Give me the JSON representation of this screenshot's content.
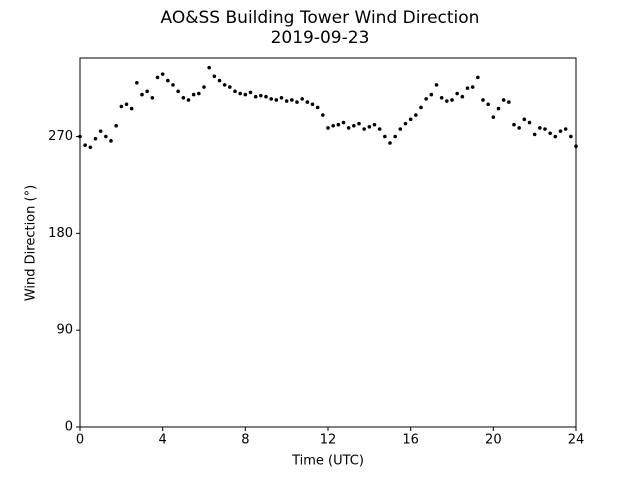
{
  "chart_data": {
    "type": "scatter",
    "title": "AO&SS Building Tower Wind Direction",
    "subtitle": "2019-09-23",
    "x_label": "Time (UTC)",
    "y_label": "Wind Direction (°)",
    "color": "#000000",
    "xlim": [
      0,
      24
    ],
    "xticks": [
      0,
      4,
      8,
      12,
      16,
      20,
      24
    ],
    "ylim": [
      0,
      343
    ],
    "yticks": [
      0,
      90,
      180,
      270
    ],
    "x": [
      0,
      0.25,
      0.5,
      0.75,
      1,
      1.25,
      1.5,
      1.75,
      2,
      2.25,
      2.5,
      2.75,
      3,
      3.25,
      3.5,
      3.75,
      4,
      4.25,
      4.5,
      4.75,
      5,
      5.25,
      5.5,
      5.75,
      6,
      6.25,
      6.5,
      6.75,
      7,
      7.25,
      7.5,
      7.75,
      8,
      8.25,
      8.5,
      8.75,
      9,
      9.25,
      9.5,
      9.75,
      10,
      10.25,
      10.5,
      10.75,
      11,
      11.25,
      11.5,
      11.75,
      12,
      12.25,
      12.5,
      12.75,
      13,
      13.25,
      13.5,
      13.75,
      14,
      14.25,
      14.5,
      14.75,
      15,
      15.25,
      15.5,
      15.75,
      16,
      16.25,
      16.5,
      16.75,
      17,
      17.25,
      17.5,
      17.75,
      18,
      18.25,
      18.5,
      18.75,
      19,
      19.25,
      19.5,
      19.75,
      20,
      20.25,
      20.5,
      20.75,
      21,
      21.25,
      21.5,
      21.75,
      22,
      22.25,
      22.5,
      22.75,
      23,
      23.25,
      23.5,
      23.75,
      24
    ],
    "values": [
      270,
      262,
      260,
      268,
      275,
      270,
      266,
      280,
      298,
      300,
      296,
      320,
      309,
      312,
      306,
      325,
      328,
      322,
      318,
      312,
      306,
      304,
      309,
      310,
      316,
      334,
      326,
      322,
      318,
      316,
      312,
      310,
      309,
      311,
      307,
      308,
      307,
      305,
      304,
      306,
      303,
      304,
      302,
      305,
      302,
      300,
      297,
      290,
      278,
      280,
      281,
      283,
      278,
      280,
      282,
      277,
      279,
      281,
      277,
      270,
      264,
      270,
      277,
      282,
      286,
      290,
      297,
      305,
      309,
      318,
      306,
      303,
      304,
      310,
      307,
      315,
      316,
      325,
      304,
      300,
      288,
      296,
      304,
      302,
      281,
      278,
      286,
      283,
      272,
      278,
      277,
      273,
      270,
      275,
      277,
      270,
      261
    ]
  }
}
